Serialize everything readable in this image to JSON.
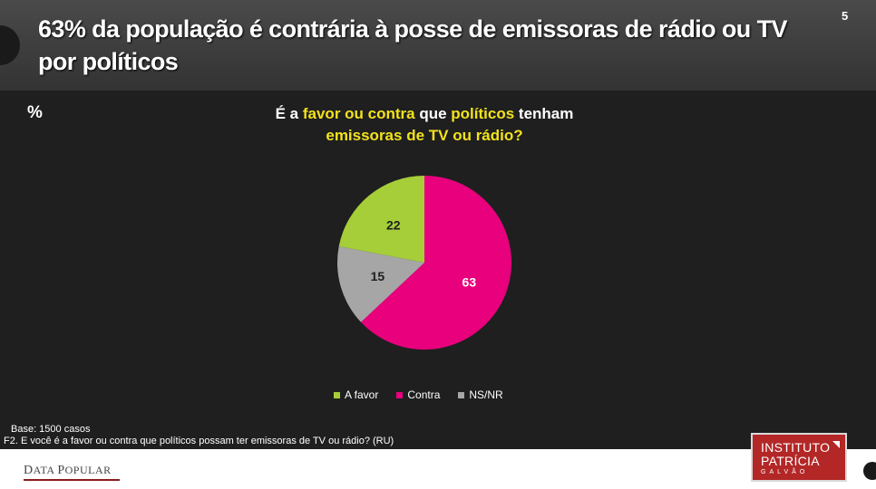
{
  "header": {
    "title": "63% da população é contrária à posse de emissoras de rádio ou TV por políticos",
    "page_number": "5"
  },
  "chart_area": {
    "unit_label": "%",
    "question": {
      "p1": "É a ",
      "p2": "favor ou contra",
      "p3": " que ",
      "p4": "políticos",
      "p5": " tenham",
      "p6": "emissoras de TV ou rádio?"
    }
  },
  "chart_data": {
    "type": "pie",
    "title": "É a favor ou contra que políticos tenham emissoras de TV ou rádio?",
    "unit": "%",
    "legend_position": "bottom",
    "slices": [
      {
        "label": "Contra",
        "value": 63,
        "color": "#e8007c"
      },
      {
        "label": "NS/NR",
        "value": 15,
        "color": "#a6a6a6"
      },
      {
        "label": "A favor",
        "value": 22,
        "color": "#a6ce39"
      }
    ],
    "legend": [
      {
        "label": "A favor",
        "color": "#a6ce39"
      },
      {
        "label": "Contra",
        "color": "#e8007c"
      },
      {
        "label": "NS/NR",
        "color": "#a6a6a6"
      }
    ]
  },
  "notes": {
    "base": "Base: 1500 casos",
    "question_text": "F2. E você é a favor ou contra que políticos possam ter emissoras de TV ou rádio? (RU)"
  },
  "logos": {
    "data_popular": {
      "d": "D",
      "ata": "ATA ",
      "p": "P",
      "opular": "OPULAR"
    },
    "instituto": {
      "line1": "INSTITUTO",
      "line2": "PATRÍCIA",
      "line3": "GALVÃO"
    }
  }
}
